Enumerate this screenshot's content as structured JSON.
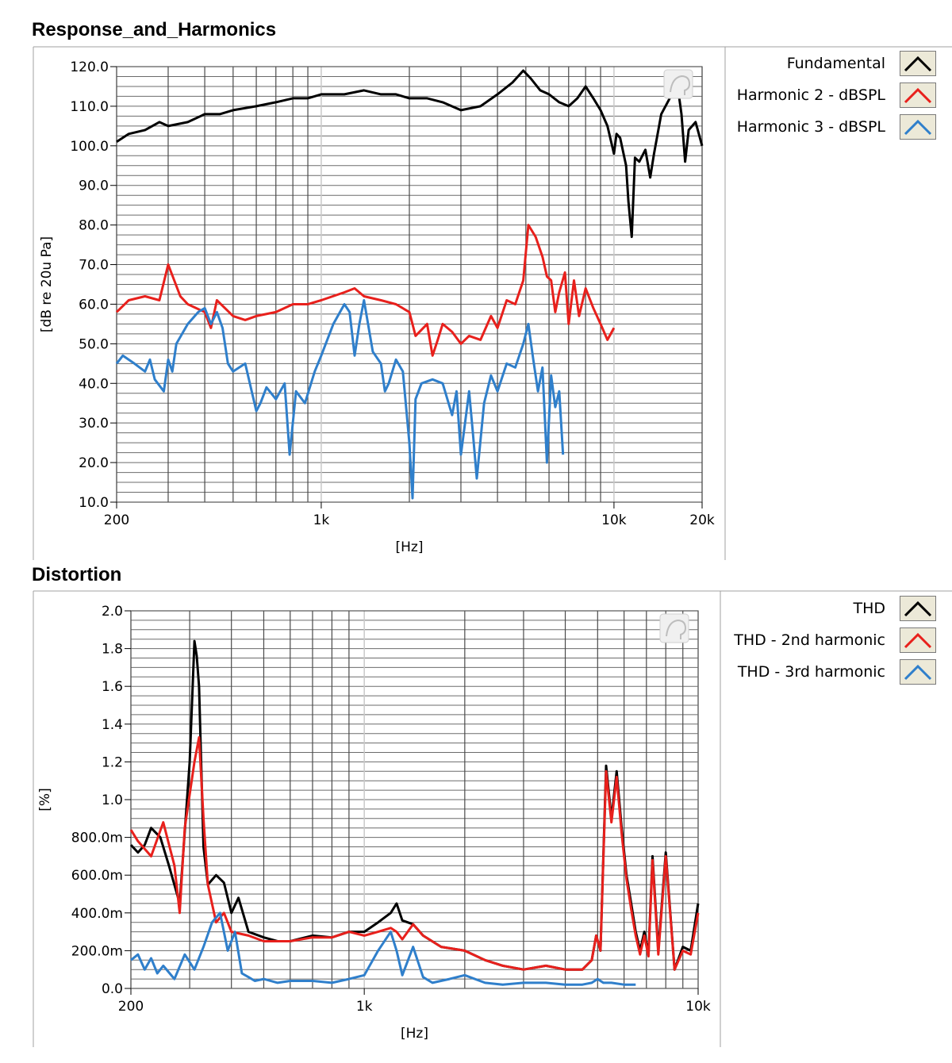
{
  "chart_data": [
    {
      "type": "line",
      "title": "Response_and_Harmonics",
      "xlabel": "[Hz]",
      "ylabel": "[dB re 20u Pa]",
      "xscale": "log",
      "xlim": [
        200,
        20000
      ],
      "ylim": [
        10,
        120
      ],
      "xticks": [
        {
          "value": 200,
          "label": "200"
        },
        {
          "value": 1000,
          "label": "1k"
        },
        {
          "value": 10000,
          "label": "10k"
        },
        {
          "value": 20000,
          "label": "20k"
        }
      ],
      "yticks": [
        {
          "value": 120,
          "label": "120.0"
        },
        {
          "value": 110,
          "label": "110.0"
        },
        {
          "value": 100,
          "label": "100.0"
        },
        {
          "value": 90,
          "label": "90.0"
        },
        {
          "value": 80,
          "label": "80.0"
        },
        {
          "value": 70,
          "label": "70.0"
        },
        {
          "value": 60,
          "label": "60.0"
        },
        {
          "value": 50,
          "label": "50.0"
        },
        {
          "value": 40,
          "label": "40.0"
        },
        {
          "value": 30,
          "label": "30.0"
        },
        {
          "value": 20,
          "label": "20.0"
        },
        {
          "value": 10,
          "label": "10.0"
        }
      ],
      "grid": true,
      "legend_position": "right",
      "series": [
        {
          "name": "Fundamental",
          "color": "#000000",
          "x": [
            200,
            220,
            250,
            280,
            300,
            350,
            400,
            450,
            500,
            600,
            700,
            800,
            900,
            1000,
            1200,
            1400,
            1600,
            1800,
            2000,
            2300,
            2600,
            3000,
            3500,
            4000,
            4500,
            4900,
            5200,
            5600,
            6000,
            6500,
            7000,
            7500,
            8000,
            8500,
            9000,
            9500,
            10000,
            10200,
            10500,
            11000,
            11200,
            11500,
            11800,
            12200,
            12800,
            13300,
            13700,
            14500,
            15500,
            16000,
            16500,
            17000,
            17500,
            18000,
            19000,
            20000
          ],
          "y": [
            101,
            103,
            104,
            106,
            105,
            106,
            108,
            108,
            109,
            110,
            111,
            112,
            112,
            113,
            113,
            114,
            113,
            113,
            112,
            112,
            111,
            109,
            110,
            113,
            116,
            119,
            117,
            114,
            113,
            111,
            110,
            112,
            115,
            112,
            109,
            105,
            98,
            103,
            102,
            95,
            86,
            77,
            97,
            96,
            99,
            92,
            98,
            108,
            112,
            117,
            115,
            108,
            96,
            104,
            106,
            100
          ]
        },
        {
          "name": "Harmonic 2 - dBSPL",
          "color": "#e8201c",
          "x": [
            200,
            220,
            250,
            280,
            300,
            330,
            350,
            400,
            420,
            440,
            500,
            550,
            600,
            700,
            800,
            900,
            1000,
            1200,
            1300,
            1400,
            1600,
            1800,
            2000,
            2100,
            2300,
            2400,
            2500,
            2600,
            2800,
            3000,
            3200,
            3500,
            3800,
            4000,
            4300,
            4600,
            4900,
            5100,
            5400,
            5700,
            5900,
            6100,
            6300,
            6500,
            6800,
            7000,
            7300,
            7600,
            8000,
            8500,
            9000,
            9500,
            10000
          ],
          "y": [
            58,
            61,
            62,
            61,
            70,
            62,
            60,
            58,
            54,
            61,
            57,
            56,
            57,
            58,
            60,
            60,
            61,
            63,
            64,
            62,
            61,
            60,
            58,
            52,
            55,
            47,
            51,
            55,
            53,
            50,
            52,
            51,
            57,
            54,
            61,
            60,
            66,
            80,
            77,
            72,
            67,
            66,
            58,
            63,
            68,
            55,
            66,
            57,
            64,
            59,
            55,
            51,
            54
          ]
        },
        {
          "name": "Harmonic 3 - dBSPL",
          "color": "#2f7fcb",
          "x": [
            200,
            210,
            230,
            250,
            260,
            270,
            290,
            300,
            310,
            320,
            350,
            380,
            400,
            420,
            440,
            460,
            480,
            500,
            550,
            600,
            620,
            650,
            700,
            750,
            780,
            820,
            880,
            950,
            1000,
            1100,
            1200,
            1250,
            1300,
            1350,
            1400,
            1500,
            1600,
            1650,
            1700,
            1800,
            1900,
            2000,
            2050,
            2100,
            2200,
            2400,
            2600,
            2800,
            2900,
            3000,
            3100,
            3200,
            3300,
            3400,
            3600,
            3800,
            4000,
            4300,
            4600,
            4900,
            5100,
            5300,
            5500,
            5700,
            5900,
            6100,
            6300,
            6500,
            6700
          ],
          "y": [
            45,
            47,
            45,
            43,
            46,
            41,
            38,
            46,
            43,
            50,
            55,
            58,
            59,
            55,
            58,
            54,
            45,
            43,
            45,
            33,
            35,
            39,
            36,
            40,
            22,
            38,
            35,
            43,
            47,
            55,
            60,
            58,
            47,
            55,
            61,
            48,
            45,
            38,
            40,
            46,
            43,
            25,
            11,
            36,
            40,
            41,
            40,
            32,
            38,
            22,
            30,
            38,
            27,
            16,
            35,
            42,
            38,
            45,
            44,
            50,
            55,
            46,
            38,
            44,
            20,
            42,
            34,
            38,
            22
          ]
        }
      ]
    },
    {
      "type": "line",
      "title": "Distortion",
      "xlabel": "[Hz]",
      "ylabel": "[%]",
      "xscale": "log",
      "xlim": [
        200,
        10000
      ],
      "ylim": [
        0,
        2.0
      ],
      "xticks": [
        {
          "value": 200,
          "label": "200"
        },
        {
          "value": 1000,
          "label": "1k"
        },
        {
          "value": 10000,
          "label": "10k"
        }
      ],
      "yticks": [
        {
          "value": 2.0,
          "label": "2.0"
        },
        {
          "value": 1.8,
          "label": "1.8"
        },
        {
          "value": 1.6,
          "label": "1.6"
        },
        {
          "value": 1.4,
          "label": "1.4"
        },
        {
          "value": 1.2,
          "label": "1.2"
        },
        {
          "value": 1.0,
          "label": "1.0"
        },
        {
          "value": 0.8,
          "label": "800.0m"
        },
        {
          "value": 0.6,
          "label": "600.0m"
        },
        {
          "value": 0.4,
          "label": "400.0m"
        },
        {
          "value": 0.2,
          "label": "200.0m"
        },
        {
          "value": 0.0,
          "label": "0.0"
        }
      ],
      "grid": true,
      "legend_position": "right",
      "series": [
        {
          "name": "THD",
          "color": "#000000",
          "x": [
            200,
            210,
            220,
            230,
            245,
            260,
            280,
            300,
            310,
            315,
            320,
            330,
            340,
            360,
            380,
            400,
            420,
            450,
            500,
            550,
            600,
            700,
            800,
            900,
            1000,
            1100,
            1200,
            1250,
            1300,
            1400,
            1500,
            1700,
            2000,
            2300,
            2600,
            3000,
            3500,
            4000,
            4500,
            4800,
            4950,
            5100,
            5300,
            5500,
            5700,
            5900,
            6100,
            6300,
            6500,
            6700,
            6900,
            7100,
            7300,
            7600,
            8000,
            8500,
            9000,
            9500,
            10000
          ],
          "y": [
            0.76,
            0.72,
            0.76,
            0.85,
            0.8,
            0.65,
            0.45,
            1.2,
            1.84,
            1.76,
            1.6,
            0.75,
            0.55,
            0.6,
            0.56,
            0.4,
            0.48,
            0.3,
            0.27,
            0.25,
            0.25,
            0.28,
            0.27,
            0.3,
            0.3,
            0.35,
            0.4,
            0.45,
            0.36,
            0.34,
            0.28,
            0.22,
            0.2,
            0.15,
            0.12,
            0.1,
            0.12,
            0.1,
            0.1,
            0.15,
            0.28,
            0.2,
            1.18,
            0.9,
            1.15,
            0.85,
            0.6,
            0.45,
            0.3,
            0.2,
            0.3,
            0.18,
            0.7,
            0.2,
            0.72,
            0.1,
            0.22,
            0.2,
            0.45
          ]
        },
        {
          "name": "THD - 2nd harmonic",
          "color": "#e8201c",
          "x": [
            200,
            210,
            230,
            250,
            270,
            280,
            290,
            310,
            320,
            330,
            340,
            360,
            380,
            400,
            450,
            500,
            600,
            700,
            800,
            900,
            1000,
            1100,
            1200,
            1250,
            1300,
            1400,
            1500,
            1700,
            2000,
            2300,
            2600,
            3000,
            3500,
            4000,
            4500,
            4800,
            4950,
            5100,
            5300,
            5500,
            5700,
            5900,
            6100,
            6300,
            6500,
            6700,
            6900,
            7100,
            7300,
            7600,
            8000,
            8500,
            9000,
            9500,
            10000
          ],
          "y": [
            0.84,
            0.78,
            0.7,
            0.88,
            0.65,
            0.4,
            0.85,
            1.2,
            1.33,
            0.9,
            0.55,
            0.35,
            0.4,
            0.3,
            0.28,
            0.25,
            0.25,
            0.27,
            0.27,
            0.3,
            0.28,
            0.3,
            0.32,
            0.3,
            0.26,
            0.34,
            0.28,
            0.22,
            0.2,
            0.15,
            0.12,
            0.1,
            0.12,
            0.1,
            0.1,
            0.15,
            0.28,
            0.2,
            1.15,
            0.88,
            1.12,
            0.82,
            0.58,
            0.42,
            0.28,
            0.18,
            0.28,
            0.17,
            0.68,
            0.18,
            0.7,
            0.1,
            0.2,
            0.18,
            0.4
          ]
        },
        {
          "name": "THD - 3rd harmonic",
          "color": "#2f7fcb",
          "x": [
            200,
            210,
            220,
            230,
            240,
            250,
            270,
            290,
            310,
            330,
            350,
            370,
            390,
            410,
            430,
            450,
            470,
            500,
            550,
            600,
            700,
            800,
            900,
            1000,
            1100,
            1200,
            1250,
            1300,
            1400,
            1500,
            1600,
            1800,
            2000,
            2300,
            2600,
            3000,
            3500,
            4000,
            4500,
            4800,
            5000,
            5200,
            5500,
            6000,
            6500
          ],
          "y": [
            0.15,
            0.18,
            0.1,
            0.16,
            0.08,
            0.12,
            0.05,
            0.18,
            0.1,
            0.22,
            0.35,
            0.4,
            0.2,
            0.3,
            0.08,
            0.06,
            0.04,
            0.05,
            0.03,
            0.04,
            0.04,
            0.03,
            0.05,
            0.07,
            0.2,
            0.3,
            0.2,
            0.07,
            0.22,
            0.06,
            0.03,
            0.05,
            0.07,
            0.03,
            0.02,
            0.03,
            0.03,
            0.02,
            0.02,
            0.03,
            0.05,
            0.03,
            0.03,
            0.02,
            0.02
          ]
        }
      ]
    }
  ]
}
